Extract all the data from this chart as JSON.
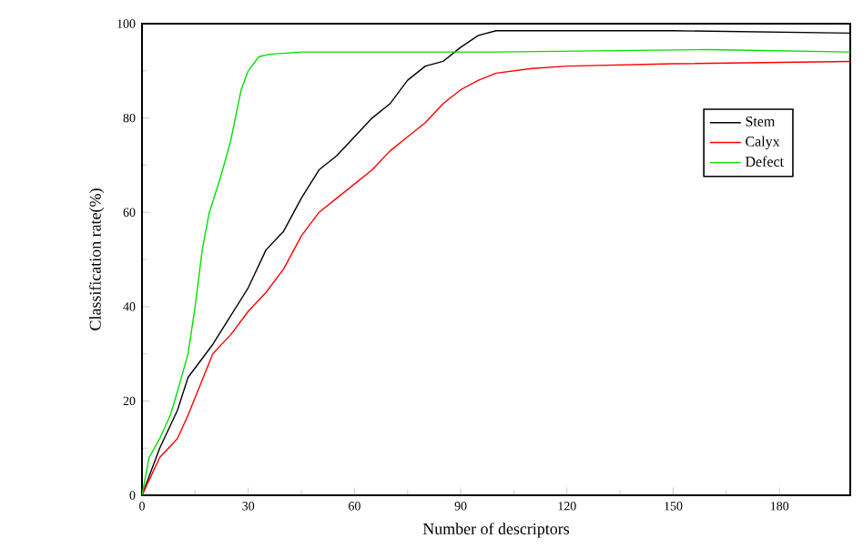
{
  "chart_data": {
    "type": "line",
    "xlabel": "Number of descriptors",
    "ylabel": "Classification rate(%)",
    "xlim": [
      0,
      200
    ],
    "ylim": [
      0,
      100
    ],
    "xticks": [
      0,
      30,
      60,
      90,
      120,
      150,
      180
    ],
    "yticks": [
      0,
      20,
      40,
      60,
      80,
      100
    ],
    "legend": "top right",
    "grid": false,
    "marker": "none",
    "line_style": "solid",
    "series": [
      {
        "name": "Stem",
        "color": "#000000",
        "x": [
          0,
          5,
          10,
          13,
          20,
          25,
          30,
          35,
          40,
          45,
          50,
          55,
          60,
          65,
          70,
          75,
          80,
          85,
          90,
          95,
          100,
          120,
          150,
          200
        ],
        "values": [
          0,
          10,
          18,
          25,
          32,
          38,
          44,
          52,
          56,
          63,
          69,
          72,
          76,
          80,
          83,
          88,
          91,
          92,
          95,
          97.5,
          98.5,
          98.5,
          98.5,
          98
        ]
      },
      {
        "name": "Calyx",
        "color": "#ff0000",
        "x": [
          0,
          5,
          10,
          13,
          20,
          25,
          30,
          35,
          40,
          45,
          50,
          55,
          60,
          65,
          70,
          75,
          80,
          85,
          90,
          95,
          100,
          110,
          120,
          150,
          200
        ],
        "values": [
          0,
          8,
          12,
          17,
          30,
          34,
          39,
          43,
          48,
          55,
          60,
          63,
          66,
          69,
          73,
          76,
          79,
          83,
          86,
          88,
          89.5,
          90.5,
          91,
          91.5,
          92
        ]
      },
      {
        "name": "Defect",
        "color": "#00e000",
        "x": [
          0,
          2,
          5,
          8,
          10,
          13,
          15,
          17,
          19,
          22,
          25,
          28,
          30,
          33,
          36,
          45,
          100,
          160,
          200
        ],
        "values": [
          0,
          8,
          12,
          17,
          22,
          30,
          40,
          52,
          60,
          67,
          75,
          86,
          90,
          93,
          93.5,
          94,
          94,
          94.5,
          94
        ]
      }
    ]
  }
}
